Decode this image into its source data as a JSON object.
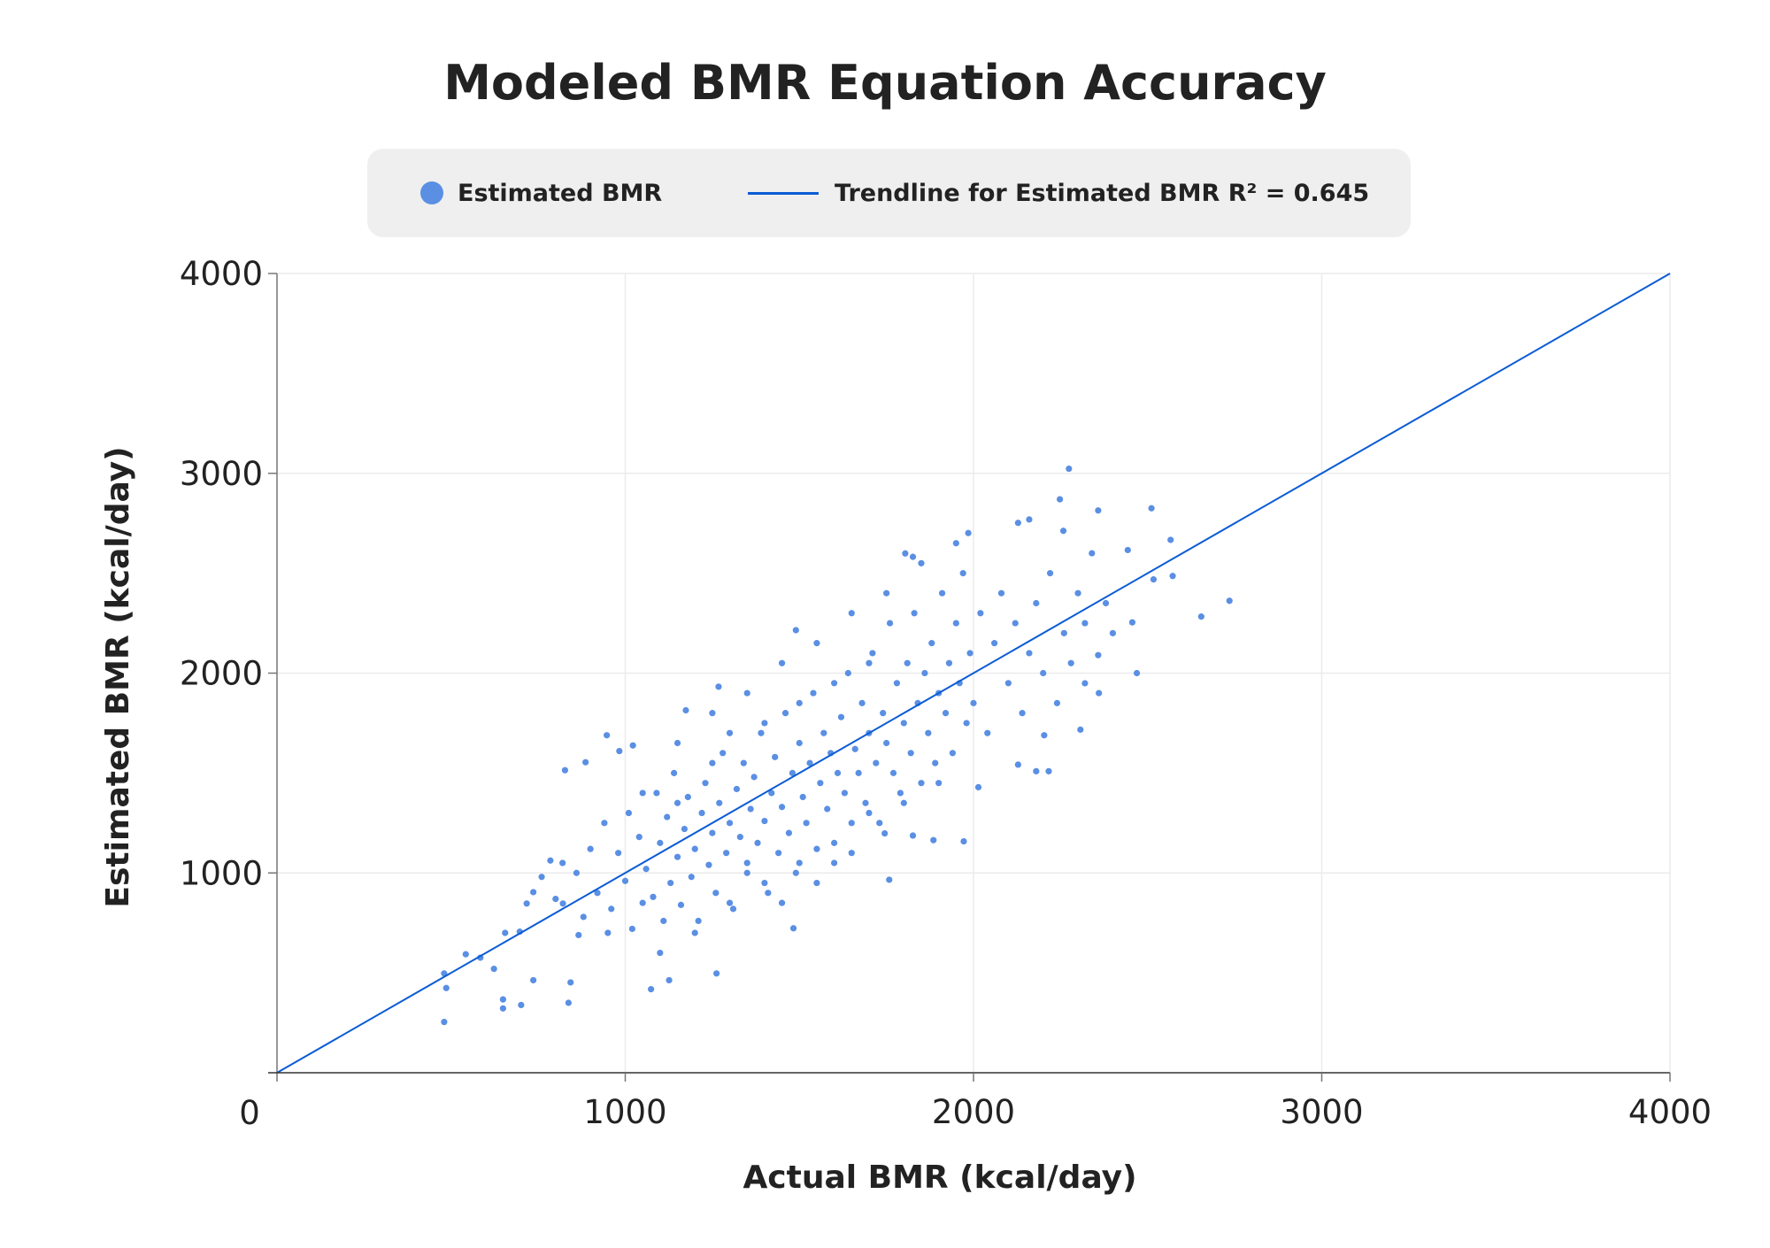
{
  "chart_data": {
    "type": "scatter",
    "title": "Modeled BMR Equation Accuracy",
    "xlabel": "Actual BMR (kcal/day)",
    "ylabel": "Estimated BMR (kcal/day)",
    "xlim": [
      0,
      4000
    ],
    "ylim": [
      0,
      4000
    ],
    "xticks": [
      "0",
      "1000",
      "2000",
      "3000",
      "4000"
    ],
    "yticks": [
      "1000",
      "2000",
      "3000",
      "4000"
    ],
    "origin_label": "0",
    "grid": true,
    "legend_position": "top",
    "colors": {
      "points": "#5a8fe3",
      "trendline": "#0b5cd5",
      "legend_bg": "#efefef"
    },
    "legend": [
      {
        "label": "Estimated BMR",
        "marker": "dot"
      },
      {
        "label": "Trendline for Estimated BMR R² = 0.645",
        "marker": "line"
      }
    ],
    "trendline": {
      "slope": 1.0,
      "intercept": 0,
      "r2": 0.645
    },
    "series": [
      {
        "name": "Estimated BMR",
        "points": [
          [
            480,
            254
          ],
          [
            486,
            424
          ],
          [
            480,
            497
          ],
          [
            542,
            593
          ],
          [
            584,
            576
          ],
          [
            623,
            520
          ],
          [
            649,
            367
          ],
          [
            649,
            322
          ],
          [
            701,
            339
          ],
          [
            736,
            463
          ],
          [
            655,
            700
          ],
          [
            697,
            706
          ],
          [
            717,
            847
          ],
          [
            736,
            904
          ],
          [
            785,
            1062
          ],
          [
            827,
            1514
          ],
          [
            886,
            1554
          ],
          [
            947,
            1689
          ],
          [
            1022,
            1638
          ],
          [
            1074,
            418
          ],
          [
            1126,
            463
          ],
          [
            1262,
            497
          ],
          [
            837,
            350
          ],
          [
            843,
            452
          ],
          [
            866,
            689
          ],
          [
            821,
            847
          ],
          [
            983,
            1610
          ],
          [
            1174,
            1814
          ],
          [
            1268,
            1932
          ],
          [
            1483,
            723
          ],
          [
            1490,
            2215
          ],
          [
            1758,
            966
          ],
          [
            1745,
            1198
          ],
          [
            1885,
            1164
          ],
          [
            1826,
            1187
          ],
          [
            2274,
            3023
          ],
          [
            2248,
            2870
          ],
          [
            2128,
            2752
          ],
          [
            2160,
            2769
          ],
          [
            2511,
            2825
          ],
          [
            2358,
            2814
          ],
          [
            2258,
            2712
          ],
          [
            1985,
            2701
          ],
          [
            1804,
            2599
          ],
          [
            1826,
            2582
          ],
          [
            2443,
            2616
          ],
          [
            2566,
            2667
          ],
          [
            2572,
            2486
          ],
          [
            2735,
            2362
          ],
          [
            2654,
            2283
          ],
          [
            2469,
            2000
          ],
          [
            2456,
            2254
          ],
          [
            2517,
            2469
          ],
          [
            2128,
            1542
          ],
          [
            2216,
            1509
          ],
          [
            2180,
            1509
          ],
          [
            2307,
            1717
          ],
          [
            2320,
            1949
          ],
          [
            2358,
            2090
          ],
          [
            2203,
            1689
          ],
          [
            1972,
            1158
          ],
          [
            2014,
            1429
          ],
          [
            760,
            980
          ],
          [
            800,
            870
          ],
          [
            820,
            1050
          ],
          [
            860,
            1000
          ],
          [
            880,
            780
          ],
          [
            900,
            1120
          ],
          [
            920,
            900
          ],
          [
            940,
            1250
          ],
          [
            960,
            820
          ],
          [
            980,
            1100
          ],
          [
            1000,
            960
          ],
          [
            1010,
            1300
          ],
          [
            1020,
            720
          ],
          [
            1040,
            1180
          ],
          [
            1060,
            1020
          ],
          [
            1080,
            880
          ],
          [
            1090,
            1400
          ],
          [
            1100,
            1150
          ],
          [
            1110,
            760
          ],
          [
            1120,
            1280
          ],
          [
            1130,
            950
          ],
          [
            1140,
            1500
          ],
          [
            1150,
            1080
          ],
          [
            1160,
            840
          ],
          [
            1170,
            1220
          ],
          [
            1180,
            1380
          ],
          [
            1190,
            980
          ],
          [
            1200,
            1120
          ],
          [
            1210,
            760
          ],
          [
            1220,
            1300
          ],
          [
            1230,
            1450
          ],
          [
            1240,
            1040
          ],
          [
            1250,
            1200
          ],
          [
            1260,
            900
          ],
          [
            1270,
            1350
          ],
          [
            1280,
            1600
          ],
          [
            1290,
            1100
          ],
          [
            1300,
            1250
          ],
          [
            1310,
            820
          ],
          [
            1320,
            1420
          ],
          [
            1330,
            1180
          ],
          [
            1340,
            1550
          ],
          [
            1350,
            1000
          ],
          [
            1360,
            1320
          ],
          [
            1370,
            1480
          ],
          [
            1380,
            1150
          ],
          [
            1390,
            1700
          ],
          [
            1400,
            1260
          ],
          [
            1410,
            900
          ],
          [
            1420,
            1400
          ],
          [
            1430,
            1580
          ],
          [
            1440,
            1100
          ],
          [
            1450,
            1330
          ],
          [
            1460,
            1800
          ],
          [
            1470,
            1200
          ],
          [
            1480,
            1500
          ],
          [
            1490,
            1000
          ],
          [
            1500,
            1650
          ],
          [
            1510,
            1380
          ],
          [
            1520,
            1250
          ],
          [
            1530,
            1550
          ],
          [
            1540,
            1900
          ],
          [
            1550,
            1120
          ],
          [
            1560,
            1450
          ],
          [
            1570,
            1700
          ],
          [
            1580,
            1320
          ],
          [
            1590,
            1600
          ],
          [
            1600,
            1050
          ],
          [
            1610,
            1500
          ],
          [
            1620,
            1780
          ],
          [
            1630,
            1400
          ],
          [
            1640,
            2000
          ],
          [
            1650,
            1250
          ],
          [
            1660,
            1620
          ],
          [
            1670,
            1500
          ],
          [
            1680,
            1850
          ],
          [
            1690,
            1350
          ],
          [
            1700,
            1700
          ],
          [
            1710,
            2100
          ],
          [
            1720,
            1550
          ],
          [
            1730,
            1250
          ],
          [
            1740,
            1800
          ],
          [
            1750,
            1650
          ],
          [
            1760,
            2250
          ],
          [
            1770,
            1500
          ],
          [
            1780,
            1950
          ],
          [
            1790,
            1400
          ],
          [
            1800,
            1750
          ],
          [
            1810,
            2050
          ],
          [
            1820,
            1600
          ],
          [
            1830,
            2300
          ],
          [
            1840,
            1850
          ],
          [
            1850,
            1450
          ],
          [
            1860,
            2000
          ],
          [
            1870,
            1700
          ],
          [
            1880,
            2150
          ],
          [
            1890,
            1550
          ],
          [
            1900,
            1900
          ],
          [
            1910,
            2400
          ],
          [
            1920,
            1800
          ],
          [
            1930,
            2050
          ],
          [
            1940,
            1600
          ],
          [
            1950,
            2250
          ],
          [
            1960,
            1950
          ],
          [
            1970,
            2500
          ],
          [
            1980,
            1750
          ],
          [
            1990,
            2100
          ],
          [
            2000,
            1850
          ],
          [
            2020,
            2300
          ],
          [
            2040,
            1700
          ],
          [
            2060,
            2150
          ],
          [
            2080,
            2400
          ],
          [
            2100,
            1950
          ],
          [
            2120,
            2250
          ],
          [
            2140,
            1800
          ],
          [
            2160,
            2100
          ],
          [
            2180,
            2350
          ],
          [
            2200,
            2000
          ],
          [
            2220,
            2500
          ],
          [
            2240,
            1850
          ],
          [
            2260,
            2200
          ],
          [
            2280,
            2050
          ],
          [
            2300,
            2400
          ],
          [
            2320,
            2250
          ],
          [
            2340,
            2600
          ],
          [
            2360,
            1900
          ],
          [
            2380,
            2350
          ],
          [
            2400,
            2200
          ],
          [
            1050,
            1400
          ],
          [
            1150,
            1650
          ],
          [
            1250,
            1800
          ],
          [
            1350,
            1900
          ],
          [
            1450,
            2050
          ],
          [
            1550,
            2150
          ],
          [
            1650,
            2300
          ],
          [
            1750,
            2400
          ],
          [
            1850,
            2550
          ],
          [
            1950,
            2650
          ],
          [
            1100,
            600
          ],
          [
            1200,
            700
          ],
          [
            1300,
            850
          ],
          [
            1400,
            950
          ],
          [
            1500,
            1050
          ],
          [
            1600,
            1150
          ],
          [
            1700,
            1300
          ],
          [
            1800,
            1350
          ],
          [
            1900,
            1450
          ],
          [
            1300,
            1700
          ],
          [
            1400,
            1750
          ],
          [
            1500,
            1850
          ],
          [
            1600,
            1950
          ],
          [
            1700,
            2050
          ],
          [
            1450,
            850
          ],
          [
            1550,
            950
          ],
          [
            1350,
            1050
          ],
          [
            1250,
            1550
          ],
          [
            1150,
            1350
          ],
          [
            1050,
            850
          ],
          [
            950,
            700
          ],
          [
            1650,
            1100
          ]
        ]
      }
    ]
  }
}
